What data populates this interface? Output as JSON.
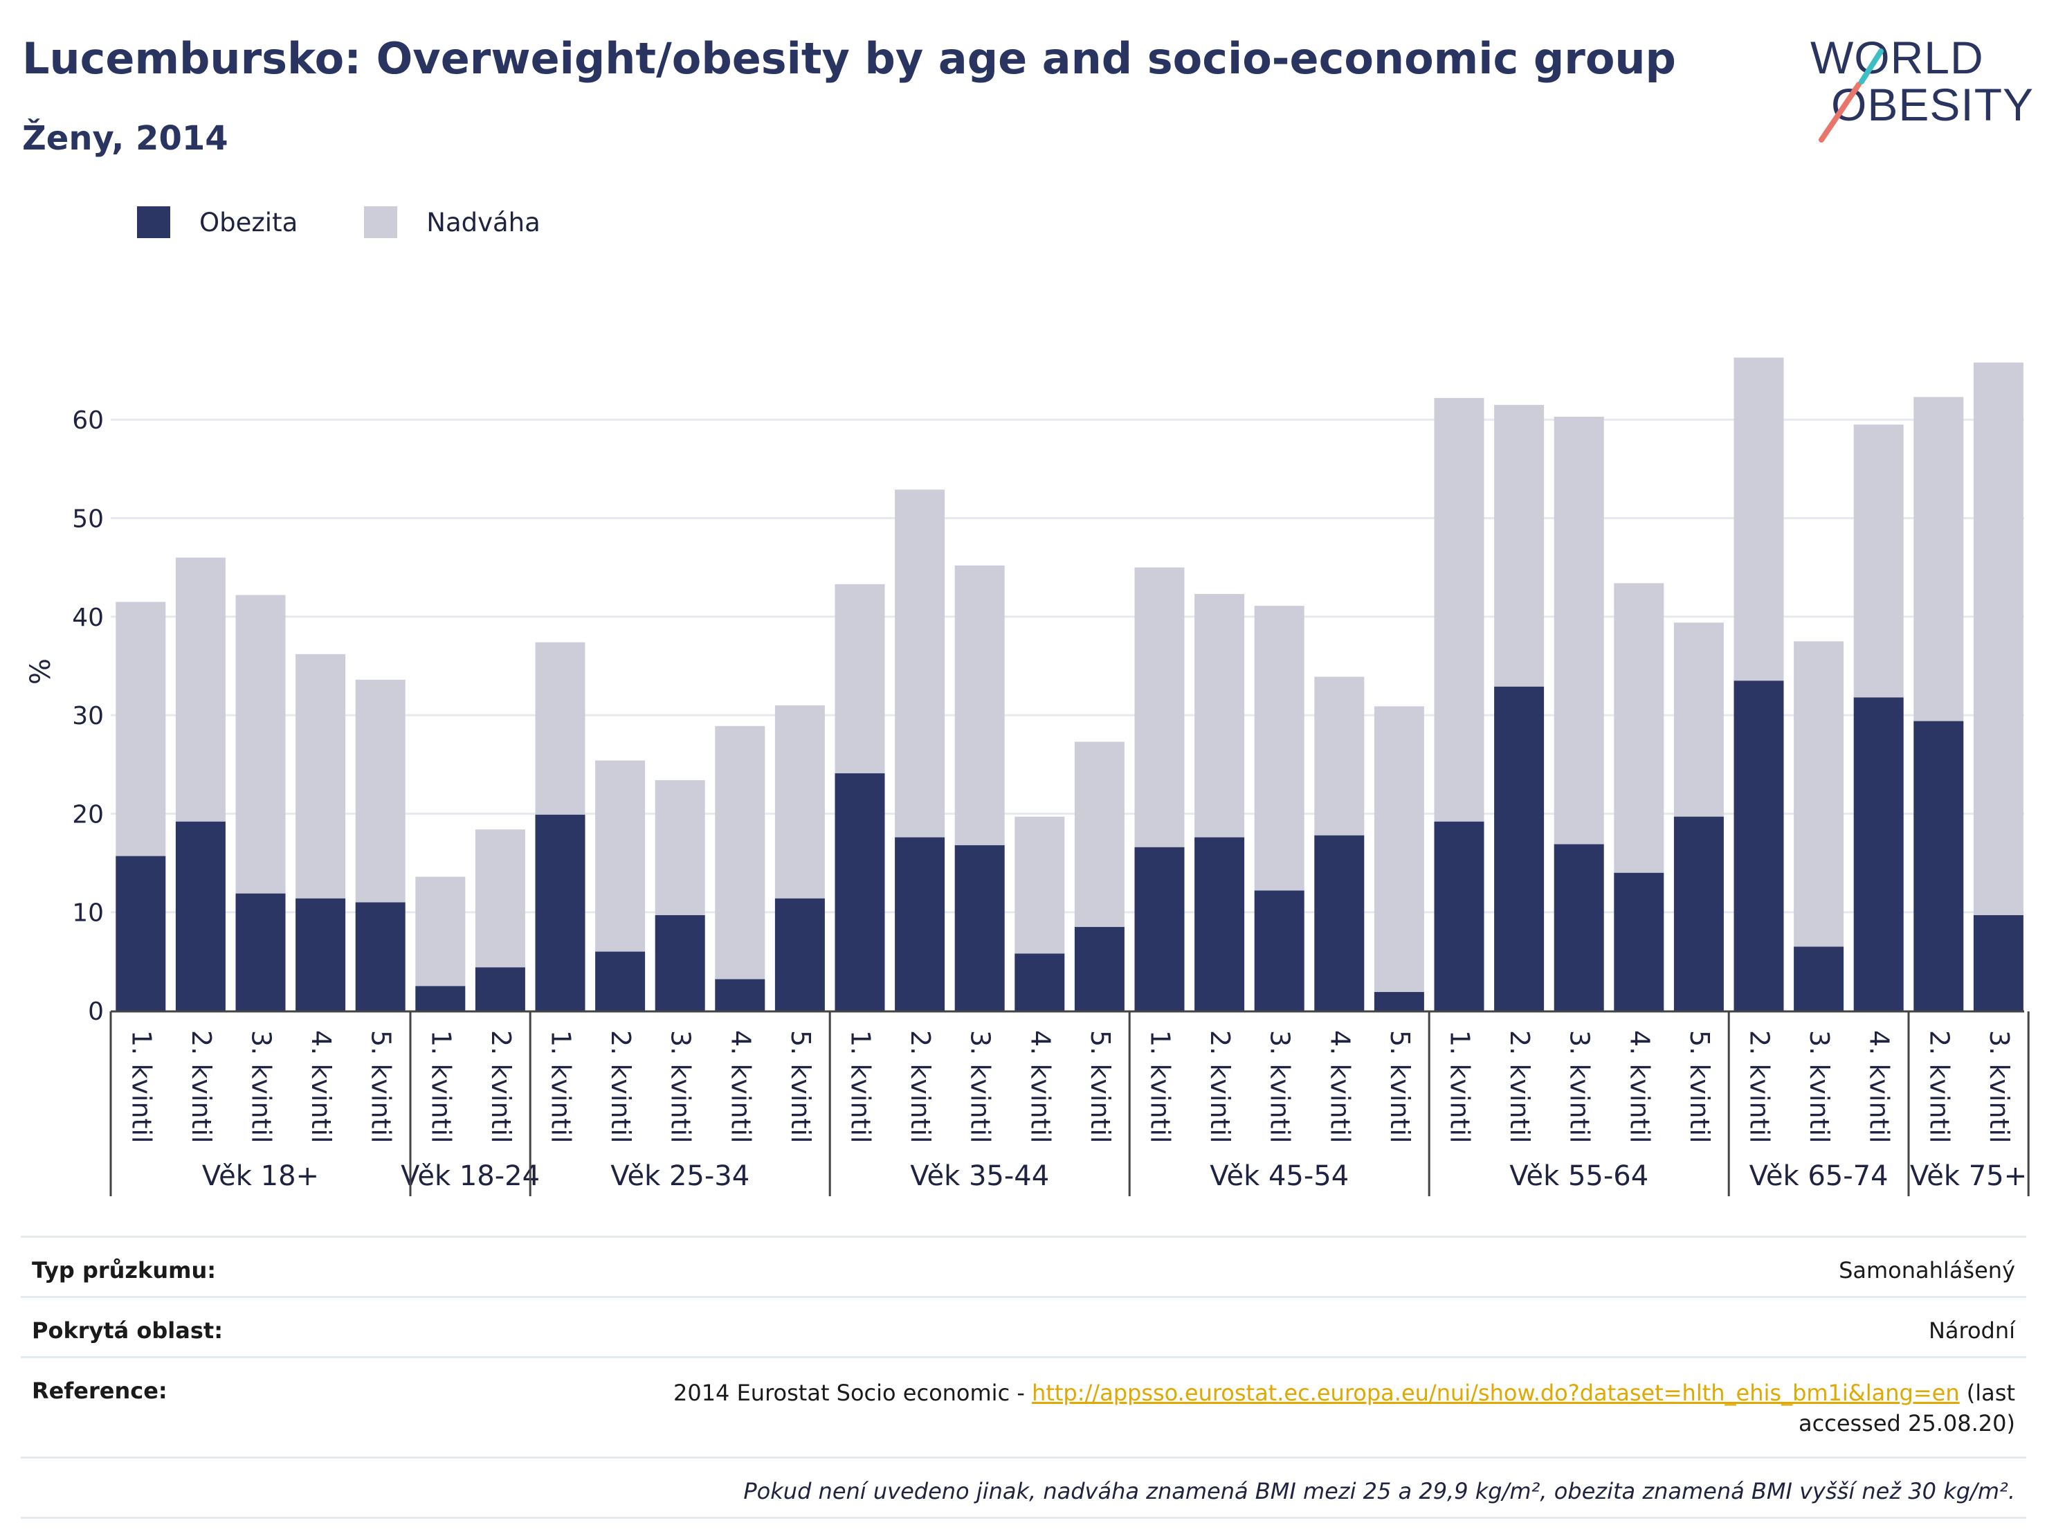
{
  "header": {
    "title": "Lucembursko: Overweight/obesity by age and socio-economic group",
    "subtitle": "Ženy, 2014"
  },
  "logo": {
    "line1": "WORLD",
    "line2": "OBESITY"
  },
  "colors": {
    "obesity": "#2b3664",
    "overweight": "#cccdd8",
    "text": "#2a3461",
    "grid": "#e6e9ee",
    "link": "#e0a800"
  },
  "chart_data": {
    "type": "bar",
    "stacked": true,
    "ylabel": "%",
    "ylim": [
      0,
      70
    ],
    "yticks": [
      0,
      10,
      20,
      30,
      40,
      50,
      60
    ],
    "grid": true,
    "legend_position": "top-left",
    "series": [
      {
        "name": "Obezita",
        "color": "#2b3664"
      },
      {
        "name": "Nadváha",
        "color": "#cccdd8"
      }
    ],
    "groups": [
      {
        "label": "Věk 18+",
        "bars": [
          {
            "label": "1. kvintil",
            "obesity": 15.7,
            "total": 41.5
          },
          {
            "label": "2. kvintil",
            "obesity": 19.2,
            "total": 46.0
          },
          {
            "label": "3. kvintil",
            "obesity": 11.9,
            "total": 42.2
          },
          {
            "label": "4. kvintil",
            "obesity": 11.4,
            "total": 36.2
          },
          {
            "label": "5. kvintil",
            "obesity": 11.0,
            "total": 33.6
          }
        ]
      },
      {
        "label": "Věk 18-24",
        "bars": [
          {
            "label": "1. kvintil",
            "obesity": 2.5,
            "total": 13.6
          },
          {
            "label": "2. kvintil",
            "obesity": 4.4,
            "total": 18.4
          }
        ]
      },
      {
        "label": "Věk 25-34",
        "bars": [
          {
            "label": "1. kvintil",
            "obesity": 19.9,
            "total": 37.4
          },
          {
            "label": "2. kvintil",
            "obesity": 6.0,
            "total": 25.4
          },
          {
            "label": "3. kvintil",
            "obesity": 9.7,
            "total": 23.4
          },
          {
            "label": "4. kvintil",
            "obesity": 3.2,
            "total": 28.9
          },
          {
            "label": "5. kvintil",
            "obesity": 11.4,
            "total": 31.0
          }
        ]
      },
      {
        "label": "Věk 35-44",
        "bars": [
          {
            "label": "1. kvintil",
            "obesity": 24.1,
            "total": 43.3
          },
          {
            "label": "2. kvintil",
            "obesity": 17.6,
            "total": 52.9
          },
          {
            "label": "3. kvintil",
            "obesity": 16.8,
            "total": 45.2
          },
          {
            "label": "4. kvintil",
            "obesity": 5.8,
            "total": 19.7
          },
          {
            "label": "5. kvintil",
            "obesity": 8.5,
            "total": 27.3
          }
        ]
      },
      {
        "label": "Věk 45-54",
        "bars": [
          {
            "label": "1. kvintil",
            "obesity": 16.6,
            "total": 45.0
          },
          {
            "label": "2. kvintil",
            "obesity": 17.6,
            "total": 42.3
          },
          {
            "label": "3. kvintil",
            "obesity": 12.2,
            "total": 41.1
          },
          {
            "label": "4. kvintil",
            "obesity": 17.8,
            "total": 33.9
          },
          {
            "label": "5. kvintil",
            "obesity": 1.9,
            "total": 30.9
          }
        ]
      },
      {
        "label": "Věk 55-64",
        "bars": [
          {
            "label": "1. kvintil",
            "obesity": 19.2,
            "total": 62.2
          },
          {
            "label": "2. kvintil",
            "obesity": 32.9,
            "total": 61.5
          },
          {
            "label": "3. kvintil",
            "obesity": 16.9,
            "total": 60.3
          },
          {
            "label": "4. kvintil",
            "obesity": 14.0,
            "total": 43.4
          },
          {
            "label": "5. kvintil",
            "obesity": 19.7,
            "total": 39.4
          }
        ]
      },
      {
        "label": "Věk 65-74",
        "bars": [
          {
            "label": "2. kvintil",
            "obesity": 33.5,
            "total": 66.3
          },
          {
            "label": "3. kvintil",
            "obesity": 6.5,
            "total": 37.5
          },
          {
            "label": "4. kvintil",
            "obesity": 31.8,
            "total": 59.5
          }
        ]
      },
      {
        "label": "Věk 75+",
        "bars": [
          {
            "label": "2. kvintil",
            "obesity": 29.4,
            "total": 62.3
          },
          {
            "label": "3. kvintil",
            "obesity": 9.7,
            "total": 65.8
          }
        ]
      }
    ]
  },
  "info": {
    "survey_type_label": "Typ průzkumu:",
    "survey_type_value": "Samonahlášený",
    "area_label": "Pokrytá oblast:",
    "area_value": "Národní",
    "reference_label": "Reference:",
    "reference_prefix": "2014 Eurostat Socio economic - ",
    "reference_link": "http://appsso.eurostat.ec.europa.eu/nui/show.do?dataset=hlth_ehis_bm1i&lang=en",
    "reference_suffix": " (last accessed 25.08.20)",
    "note": "Pokud není uvedeno jinak, nadváha znamená BMI mezi 25 a 29,9 kg/m², obezita znamená BMI vyšší než 30 kg/m²."
  }
}
